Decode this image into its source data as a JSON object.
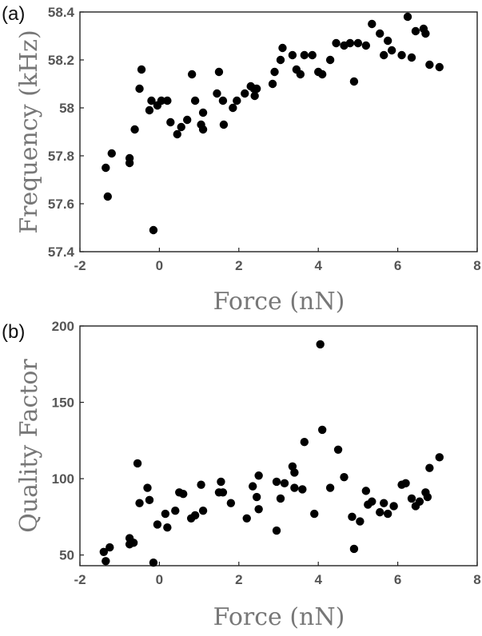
{
  "chart_data": [
    {
      "type": "scatter",
      "panel_label": "(a)",
      "xlabel": "Force (nN)",
      "ylabel": "Frequency (kHz)",
      "xlim": [
        -2,
        8
      ],
      "ylim": [
        57.4,
        58.4
      ],
      "xticks": [
        "-2",
        "0",
        "2",
        "4",
        "6",
        "8"
      ],
      "yticks": [
        "57.4",
        "57.6",
        "57.8",
        "58",
        "58.2",
        "58.4"
      ],
      "grid": false,
      "points": [
        [
          -1.35,
          57.75
        ],
        [
          -1.3,
          57.63
        ],
        [
          -1.2,
          57.81
        ],
        [
          -0.75,
          57.77
        ],
        [
          -0.75,
          57.79
        ],
        [
          -0.62,
          57.91
        ],
        [
          -0.5,
          58.08
        ],
        [
          -0.45,
          58.16
        ],
        [
          -0.25,
          57.99
        ],
        [
          -0.2,
          58.03
        ],
        [
          -0.15,
          57.49
        ],
        [
          -0.05,
          58.01
        ],
        [
          0.05,
          58.03
        ],
        [
          0.2,
          58.03
        ],
        [
          0.28,
          57.94
        ],
        [
          0.45,
          57.89
        ],
        [
          0.55,
          57.92
        ],
        [
          0.7,
          57.95
        ],
        [
          0.82,
          58.14
        ],
        [
          0.9,
          58.03
        ],
        [
          1.05,
          57.93
        ],
        [
          1.1,
          57.91
        ],
        [
          1.1,
          57.98
        ],
        [
          1.45,
          58.06
        ],
        [
          1.5,
          58.15
        ],
        [
          1.6,
          58.03
        ],
        [
          1.62,
          57.93
        ],
        [
          1.85,
          58.0
        ],
        [
          1.95,
          58.03
        ],
        [
          2.15,
          58.06
        ],
        [
          2.3,
          58.09
        ],
        [
          2.38,
          58.08
        ],
        [
          2.4,
          58.05
        ],
        [
          2.45,
          58.08
        ],
        [
          2.85,
          58.1
        ],
        [
          2.9,
          58.15
        ],
        [
          3.05,
          58.2
        ],
        [
          3.1,
          58.25
        ],
        [
          3.35,
          58.22
        ],
        [
          3.45,
          58.16
        ],
        [
          3.55,
          58.14
        ],
        [
          3.65,
          58.22
        ],
        [
          3.85,
          58.22
        ],
        [
          4.0,
          58.15
        ],
        [
          4.1,
          58.14
        ],
        [
          4.3,
          58.2
        ],
        [
          4.45,
          58.27
        ],
        [
          4.65,
          58.26
        ],
        [
          4.8,
          58.27
        ],
        [
          4.9,
          58.11
        ],
        [
          5.0,
          58.27
        ],
        [
          5.2,
          58.26
        ],
        [
          5.35,
          58.35
        ],
        [
          5.55,
          58.31
        ],
        [
          5.65,
          58.22
        ],
        [
          5.75,
          58.28
        ],
        [
          5.85,
          58.24
        ],
        [
          6.1,
          58.22
        ],
        [
          6.25,
          58.38
        ],
        [
          6.35,
          58.21
        ],
        [
          6.45,
          58.32
        ],
        [
          6.65,
          58.33
        ],
        [
          6.7,
          58.31
        ],
        [
          6.8,
          58.18
        ],
        [
          7.05,
          58.17
        ]
      ]
    },
    {
      "type": "scatter",
      "panel_label": "(b)",
      "xlabel": "Force (nN)",
      "ylabel": "Quality Factor",
      "xlim": [
        -2,
        8
      ],
      "ylim": [
        43,
        200
      ],
      "xticks": [
        "-2",
        "0",
        "2",
        "4",
        "6",
        "8"
      ],
      "yticks": [
        "50",
        "100",
        "150",
        "200"
      ],
      "ytick_values": [
        50,
        100,
        150,
        200
      ],
      "grid": false,
      "points": [
        [
          -1.4,
          52
        ],
        [
          -1.35,
          46
        ],
        [
          -1.25,
          55
        ],
        [
          -0.75,
          57
        ],
        [
          -0.75,
          61
        ],
        [
          -0.65,
          58
        ],
        [
          -0.55,
          110
        ],
        [
          -0.5,
          84
        ],
        [
          -0.3,
          94
        ],
        [
          -0.25,
          86
        ],
        [
          -0.15,
          45
        ],
        [
          -0.05,
          70
        ],
        [
          0.15,
          77
        ],
        [
          0.2,
          68
        ],
        [
          0.4,
          79
        ],
        [
          0.5,
          91
        ],
        [
          0.6,
          90
        ],
        [
          0.8,
          74
        ],
        [
          0.9,
          76
        ],
        [
          1.05,
          96
        ],
        [
          1.1,
          79
        ],
        [
          1.5,
          91
        ],
        [
          1.55,
          98
        ],
        [
          1.6,
          91
        ],
        [
          1.8,
          84
        ],
        [
          2.2,
          74
        ],
        [
          2.35,
          95
        ],
        [
          2.45,
          88
        ],
        [
          2.5,
          102
        ],
        [
          2.5,
          80
        ],
        [
          2.95,
          98
        ],
        [
          2.95,
          66
        ],
        [
          3.05,
          87
        ],
        [
          3.15,
          97
        ],
        [
          3.35,
          108
        ],
        [
          3.4,
          94
        ],
        [
          3.4,
          104
        ],
        [
          3.6,
          93
        ],
        [
          3.65,
          124
        ],
        [
          3.9,
          77
        ],
        [
          4.05,
          188
        ],
        [
          4.1,
          132
        ],
        [
          4.3,
          94
        ],
        [
          4.5,
          119
        ],
        [
          4.65,
          101
        ],
        [
          4.85,
          75
        ],
        [
          4.9,
          54
        ],
        [
          5.05,
          72
        ],
        [
          5.2,
          92
        ],
        [
          5.25,
          83
        ],
        [
          5.35,
          85
        ],
        [
          5.55,
          78
        ],
        [
          5.65,
          84
        ],
        [
          5.75,
          77
        ],
        [
          5.9,
          82
        ],
        [
          6.1,
          96
        ],
        [
          6.2,
          97
        ],
        [
          6.35,
          87
        ],
        [
          6.45,
          82
        ],
        [
          6.55,
          85
        ],
        [
          6.7,
          91
        ],
        [
          6.75,
          88
        ],
        [
          6.8,
          107
        ],
        [
          7.05,
          114
        ]
      ]
    }
  ]
}
